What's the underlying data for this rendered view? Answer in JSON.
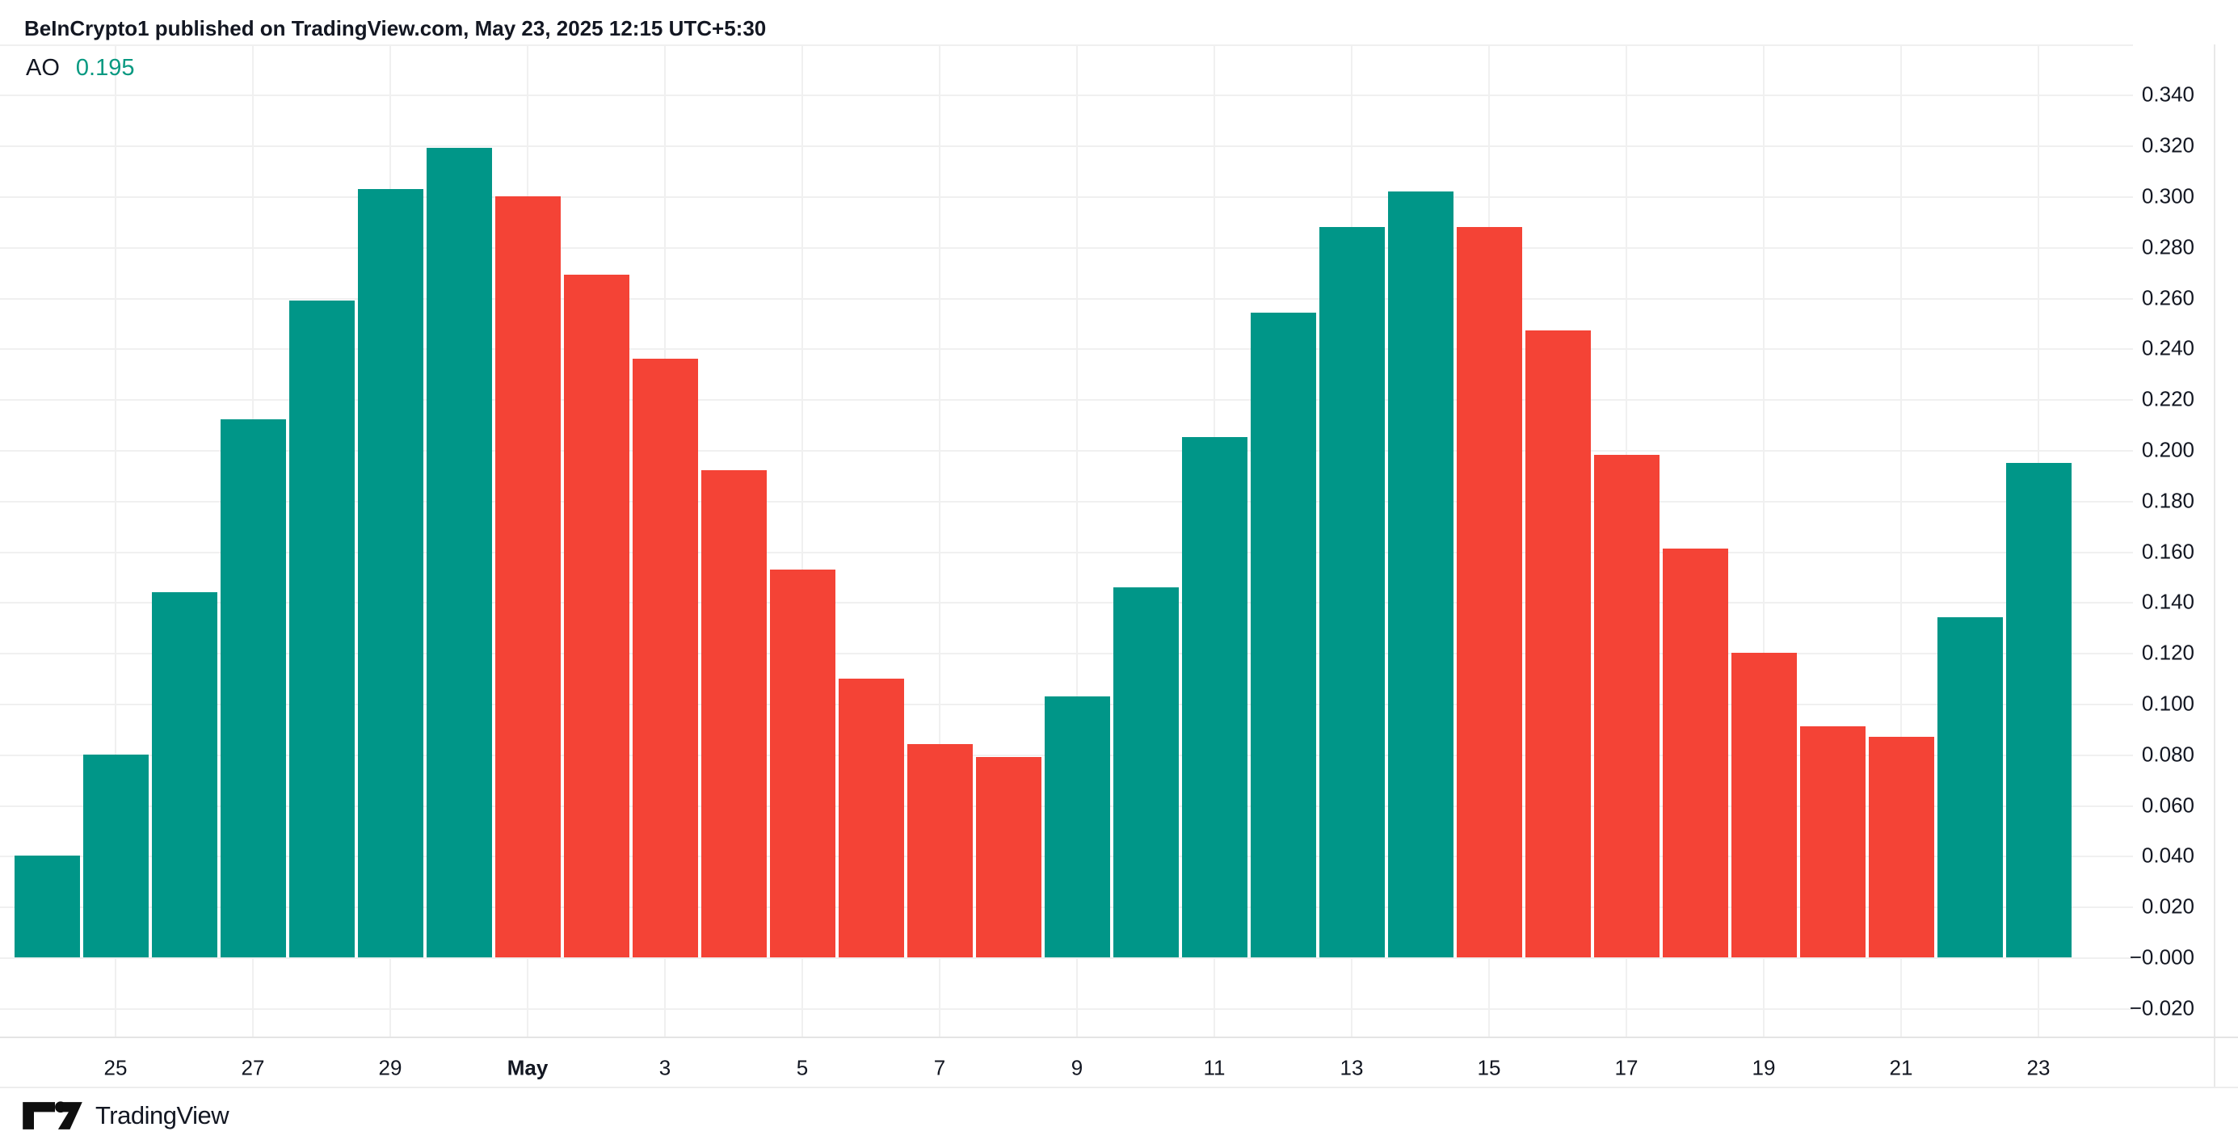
{
  "header": {
    "title": "BeInCrypto1 published on TradingView.com, May 23, 2025 12:15 UTC+5:30"
  },
  "legend": {
    "indicator": "AO",
    "value": "0.195"
  },
  "colors": {
    "background": "#ffffff",
    "rising_bar": "#009688",
    "falling_bar": "#f44336",
    "legend_value": "#089981",
    "text": "#131722",
    "grid": "#f0f0f0",
    "axis_border": "#e4e4e4"
  },
  "chart_data": {
    "type": "bar",
    "title": "AO (Awesome Oscillator) histogram",
    "legend_position": "top-left",
    "grid": true,
    "ylim": [
      -0.036,
      0.362
    ],
    "categories": [
      "Apr 24",
      "Apr 25",
      "Apr 26",
      "Apr 27",
      "Apr 28",
      "Apr 29",
      "Apr 30",
      "May 1",
      "May 2",
      "May 3",
      "May 4",
      "May 5",
      "May 6",
      "May 7",
      "May 8",
      "May 9",
      "May 10",
      "May 11",
      "May 12",
      "May 13",
      "May 14",
      "May 15",
      "May 16",
      "May 17",
      "May 18",
      "May 19",
      "May 20",
      "May 21",
      "May 22",
      "May 23"
    ],
    "values": [
      0.04,
      0.08,
      0.144,
      0.212,
      0.259,
      0.303,
      0.319,
      0.3,
      0.269,
      0.236,
      0.192,
      0.153,
      0.11,
      0.084,
      0.079,
      0.103,
      0.146,
      0.205,
      0.254,
      0.288,
      0.302,
      0.288,
      0.247,
      0.198,
      0.161,
      0.12,
      0.091,
      0.087,
      0.134,
      0.195
    ],
    "directions": [
      "up",
      "up",
      "up",
      "up",
      "up",
      "up",
      "up",
      "down",
      "down",
      "down",
      "down",
      "down",
      "down",
      "down",
      "down",
      "up",
      "up",
      "up",
      "up",
      "up",
      "up",
      "down",
      "down",
      "down",
      "down",
      "down",
      "down",
      "down",
      "up",
      "up"
    ],
    "y_ticks": [
      {
        "label": "0.340",
        "value": 0.34
      },
      {
        "label": "0.320",
        "value": 0.32
      },
      {
        "label": "0.300",
        "value": 0.3
      },
      {
        "label": "0.280",
        "value": 0.28
      },
      {
        "label": "0.260",
        "value": 0.26
      },
      {
        "label": "0.240",
        "value": 0.24
      },
      {
        "label": "0.220",
        "value": 0.22
      },
      {
        "label": "0.200",
        "value": 0.2
      },
      {
        "label": "0.180",
        "value": 0.18
      },
      {
        "label": "0.160",
        "value": 0.16
      },
      {
        "label": "0.140",
        "value": 0.14
      },
      {
        "label": "0.120",
        "value": 0.12
      },
      {
        "label": "0.100",
        "value": 0.1
      },
      {
        "label": "0.080",
        "value": 0.08
      },
      {
        "label": "0.060",
        "value": 0.06
      },
      {
        "label": "0.040",
        "value": 0.04
      },
      {
        "label": "0.020",
        "value": 0.02
      },
      {
        "label": "−0.000",
        "value": 0.0
      },
      {
        "label": "−0.020",
        "value": -0.02
      }
    ],
    "x_ticks": [
      {
        "label": "25",
        "bar": 1
      },
      {
        "label": "27",
        "bar": 3
      },
      {
        "label": "29",
        "bar": 5
      },
      {
        "label": "May",
        "bar": 7
      },
      {
        "label": "3",
        "bar": 9
      },
      {
        "label": "5",
        "bar": 11
      },
      {
        "label": "7",
        "bar": 13
      },
      {
        "label": "9",
        "bar": 15
      },
      {
        "label": "11",
        "bar": 17
      },
      {
        "label": "13",
        "bar": 19
      },
      {
        "label": "15",
        "bar": 21
      },
      {
        "label": "17",
        "bar": 23
      },
      {
        "label": "19",
        "bar": 25
      },
      {
        "label": "21",
        "bar": 27
      },
      {
        "label": "23",
        "bar": 29
      }
    ]
  },
  "footer": {
    "brand": "TradingView"
  }
}
